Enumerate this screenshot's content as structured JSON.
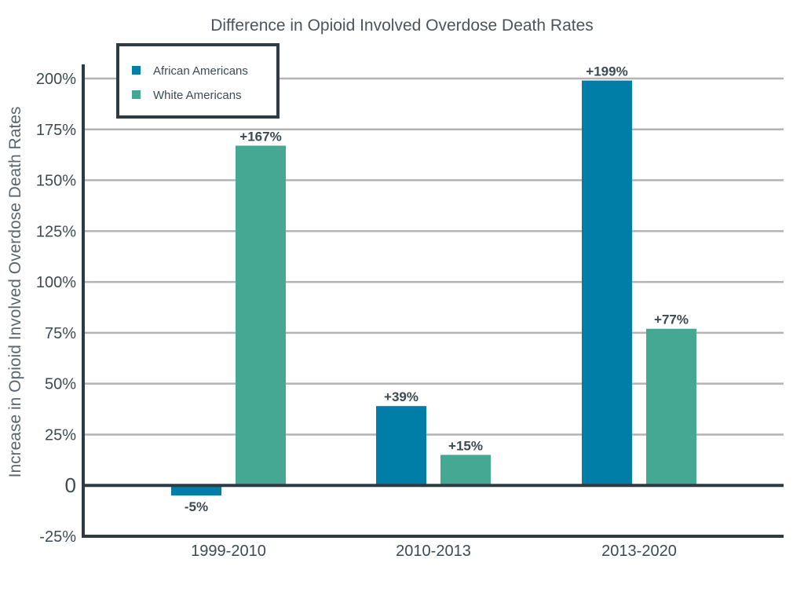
{
  "chart_data": {
    "type": "bar",
    "title": "Difference in Opioid Involved Overdose Death Rates",
    "xlabel": "",
    "ylabel": "Increase in Opioid Involved Overdose Death Rates",
    "categories": [
      "1999-2010",
      "2010-2013",
      "2013-2020"
    ],
    "series": [
      {
        "name": "African Americans",
        "color": "#007ea7",
        "values": [
          -5,
          39,
          199
        ],
        "labels": [
          "-5%",
          "+39%",
          "+199%"
        ]
      },
      {
        "name": "White Americans",
        "color": "#45a893",
        "values": [
          167,
          15,
          77
        ],
        "labels": [
          "+167%",
          "+15%",
          "+77%"
        ]
      }
    ],
    "yticks": [
      {
        "value": -25,
        "label": "-25%"
      },
      {
        "value": 0,
        "label": "0"
      },
      {
        "value": 25,
        "label": "25%"
      },
      {
        "value": 50,
        "label": "50%"
      },
      {
        "value": 75,
        "label": "75%"
      },
      {
        "value": 100,
        "label": "100%"
      },
      {
        "value": 125,
        "label": "125%"
      },
      {
        "value": 150,
        "label": "150%"
      },
      {
        "value": 175,
        "label": "175%"
      },
      {
        "value": 200,
        "label": "200%"
      }
    ],
    "ylim": [
      -25,
      200
    ],
    "grid": true,
    "legend_position": "top-left"
  }
}
